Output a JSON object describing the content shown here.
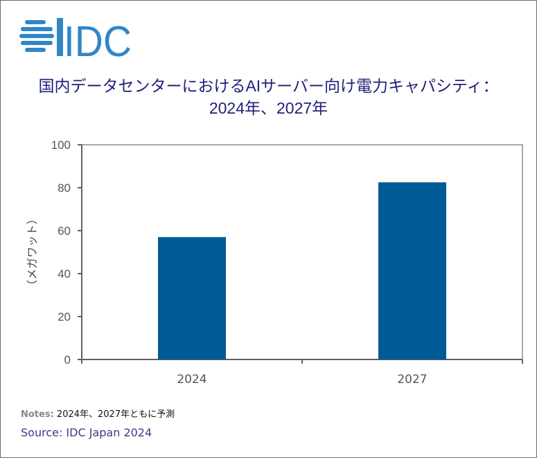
{
  "logo_text": "IDC",
  "colors": {
    "bar": "#005a96",
    "logo": "#2f86c7",
    "title": "#1f1f7a"
  },
  "chart_data": {
    "type": "bar",
    "title_line1": "国内データセンターにおけるAIサーバー向け電力キャパシティ：",
    "title_line2": "2024年、2027年",
    "ylabel": "（メガワット）",
    "categories": [
      "2024",
      "2027"
    ],
    "values": [
      57,
      82.5
    ],
    "ylim": [
      0,
      100
    ],
    "yticks": [
      "0",
      "20",
      "40",
      "60",
      "80",
      "100"
    ],
    "grid": false,
    "legend": "none"
  },
  "notes_label": "Notes:",
  "notes_text": "2024年、2027年ともに予測",
  "source": "Source: IDC Japan 2024"
}
